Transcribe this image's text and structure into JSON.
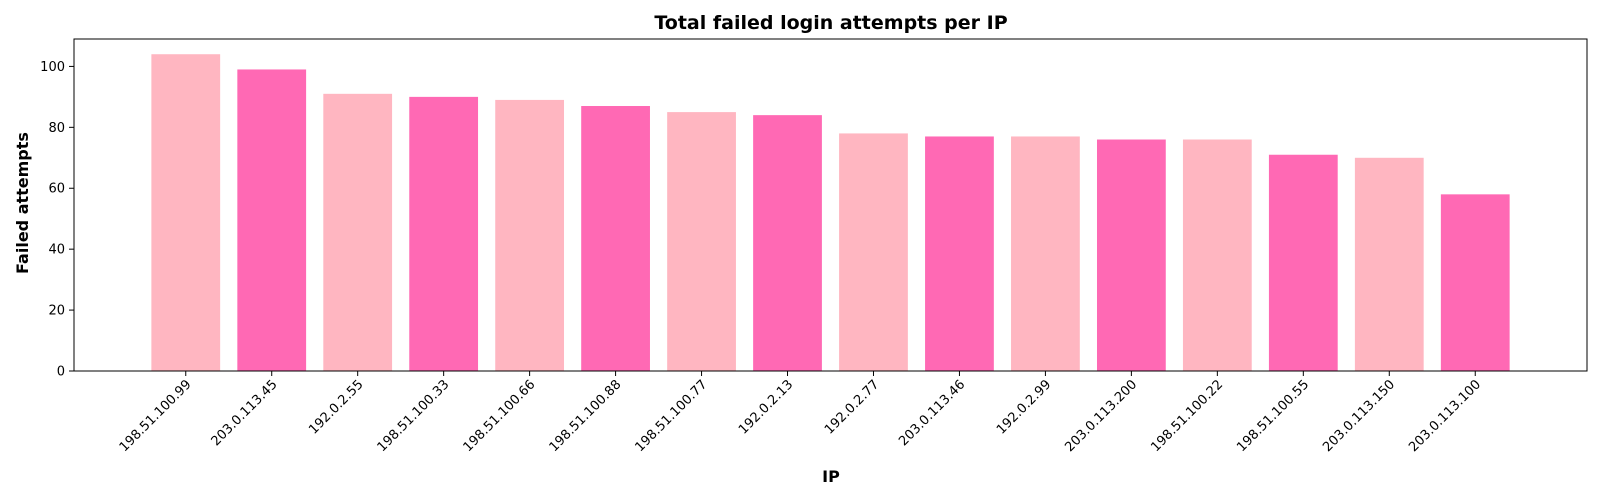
{
  "chart_data": {
    "type": "bar",
    "title": "Total failed login attempts per IP",
    "xlabel": "IP",
    "ylabel": "Failed attempts",
    "categories": [
      "198.51.100.99",
      "203.0.113.45",
      "192.0.2.55",
      "198.51.100.33",
      "198.51.100.66",
      "198.51.100.88",
      "198.51.100.77",
      "192.0.2.13",
      "192.0.2.77",
      "203.0.113.46",
      "192.0.2.99",
      "203.0.113.200",
      "198.51.100.22",
      "198.51.100.55",
      "203.0.113.150",
      "203.0.113.100"
    ],
    "values": [
      104,
      99,
      91,
      90,
      89,
      87,
      85,
      84,
      78,
      77,
      77,
      76,
      76,
      71,
      70,
      58
    ],
    "ylim": [
      0,
      109
    ],
    "yticks": [
      0,
      20,
      40,
      60,
      80,
      100
    ],
    "grid": false,
    "legend": "none",
    "colors": [
      "#ffb6c1",
      "#ff69b4"
    ]
  }
}
